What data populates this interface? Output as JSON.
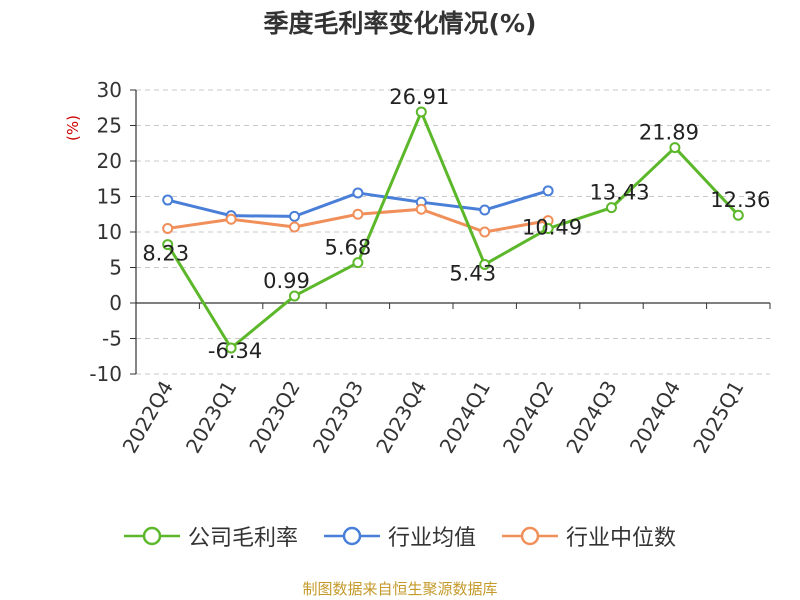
{
  "chart_data": {
    "type": "line",
    "title": "季度毛利率变化情况(%)",
    "ylabel": "(%)",
    "xlabel": "",
    "categories": [
      "2022Q4",
      "2023Q1",
      "2023Q2",
      "2023Q3",
      "2023Q4",
      "2024Q1",
      "2024Q2",
      "2024Q3",
      "2024Q4",
      "2025Q1"
    ],
    "ylim": [
      -10,
      30
    ],
    "yticks": [
      30,
      25,
      20,
      15,
      10,
      5,
      0,
      -5,
      -10
    ],
    "grid": true,
    "legend_position": "bottom",
    "series": [
      {
        "name": "公司毛利率",
        "color": "#5cb82a",
        "values": [
          8.23,
          -6.34,
          0.99,
          5.68,
          26.91,
          5.43,
          10.49,
          13.43,
          21.89,
          12.36
        ],
        "labels": [
          "8.23",
          "-6.34",
          "0.99",
          "5.68",
          "26.91",
          "5.43",
          "10.49",
          "13.43",
          "21.89",
          "12.36"
        ]
      },
      {
        "name": "行业均值",
        "color": "#4a7fd8",
        "values": [
          14.5,
          12.3,
          12.2,
          15.5,
          14.2,
          13.1,
          15.8,
          null,
          null,
          null
        ]
      },
      {
        "name": "行业中位数",
        "color": "#f08f5a",
        "values": [
          10.5,
          11.8,
          10.7,
          12.5,
          13.2,
          10.0,
          11.6,
          null,
          null,
          null
        ]
      }
    ]
  },
  "source_note": "制图数据来自恒生聚源数据库",
  "colors": {
    "axis": "#333333",
    "grid": "#c8c8c8",
    "ylabel": "#cc0000"
  }
}
